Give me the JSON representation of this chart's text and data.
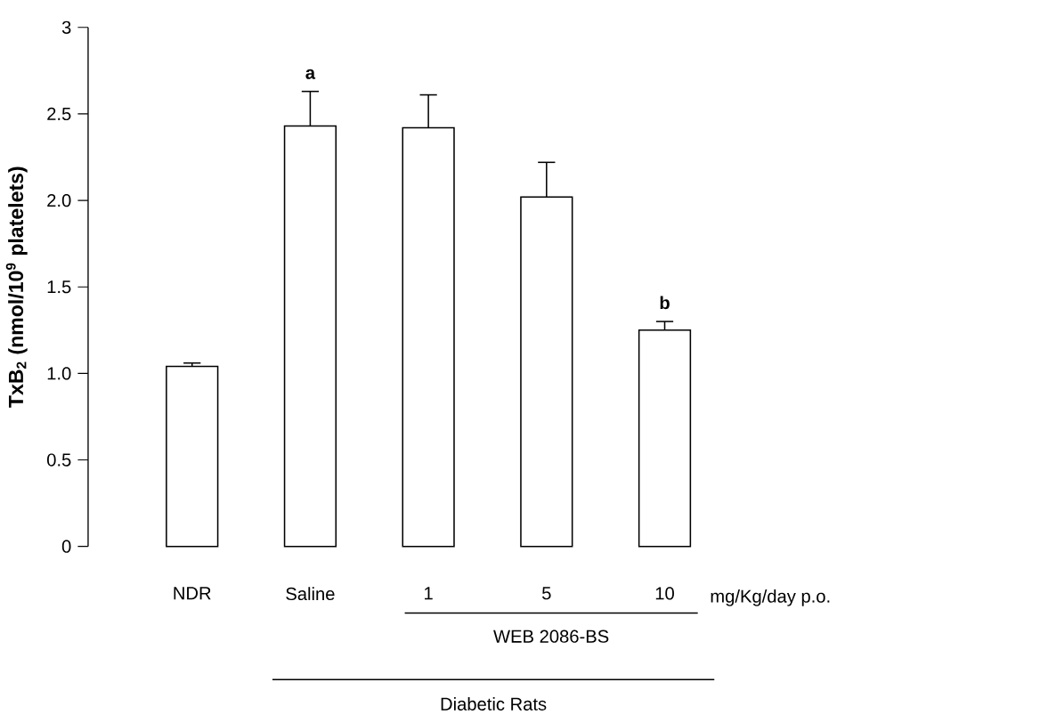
{
  "chart_data": {
    "type": "bar",
    "ylabel": "TxB$_{2}$ (nmol/10$^{9}$ platelets)",
    "categories": [
      "NDR",
      "Saline",
      "1",
      "5",
      "10"
    ],
    "values": [
      1.04,
      2.43,
      2.42,
      2.02,
      1.25
    ],
    "errors": [
      [
        1.04,
        1.06
      ],
      [
        2.43,
        2.63
      ],
      [
        2.42,
        2.61
      ],
      [
        2.02,
        2.22
      ],
      [
        1.25,
        1.3
      ]
    ],
    "color": "#ffffff",
    "ylim": [
      0,
      3
    ],
    "yticks": [
      0,
      0.5,
      {
        "value": 1,
        "label": "1.0"
      },
      1.5,
      {
        "value": 2,
        "label": "2.0"
      },
      2.5,
      3
    ],
    "grid": false,
    "annotations": [
      {
        "text": "a",
        "x": "Saline",
        "y": 2.63
      },
      {
        "text": "b",
        "x": "10",
        "y": 1.3
      },
      "mg/Kg/day p.o.",
      "WEB 2086-BS",
      "Diabetic Rats"
    ]
  }
}
